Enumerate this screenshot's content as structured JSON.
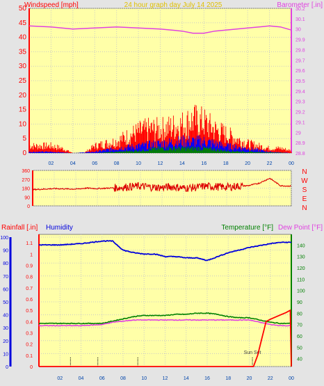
{
  "chart_data": [
    {
      "type": "line",
      "title": "24 hour graph day   July 14 2025",
      "left_axis_label": "Windspeed [mph]",
      "right_axis_label": "Barometer [.in]",
      "left_ylim": [
        0,
        50
      ],
      "left_ticks": [
        "0",
        "5",
        "10",
        "15",
        "20",
        "25",
        "30",
        "35",
        "40",
        "45",
        "50"
      ],
      "right_ylim": [
        28.8,
        30.2
      ],
      "right_ticks": [
        "28.8",
        "28.9",
        "29",
        "29.1",
        "29.2",
        "29.3",
        "29.4",
        "29.5",
        "29.6",
        "29.7",
        "29.8",
        "29.9",
        "30",
        "30.1",
        "30.2"
      ],
      "x_ticks": [
        "02",
        "04",
        "06",
        "08",
        "10",
        "12",
        "14",
        "16",
        "18",
        "20",
        "22",
        "00"
      ],
      "series": [
        {
          "name": "Barometer",
          "color": "#e040e0",
          "x": [
            0,
            2,
            4,
            6,
            8,
            10,
            12,
            14,
            15,
            16,
            17,
            18,
            20,
            22,
            23,
            24
          ],
          "values": [
            30.03,
            30.02,
            30.0,
            30.01,
            30.02,
            30.01,
            30.0,
            29.98,
            29.96,
            29.96,
            29.98,
            29.99,
            30.01,
            30.03,
            30.02,
            29.99
          ]
        },
        {
          "name": "Wind gust",
          "color": "#ff0000",
          "x": [
            0,
            1,
            2,
            3,
            4,
            5,
            6,
            7,
            8,
            9,
            10,
            11,
            12,
            13,
            14,
            15,
            16,
            17,
            18,
            19,
            20,
            21,
            22,
            23,
            24
          ],
          "values": [
            3,
            3,
            3,
            2,
            0,
            0,
            3,
            4,
            5,
            7,
            9,
            10,
            10,
            11,
            12,
            14,
            13,
            10,
            8,
            6,
            4,
            3,
            2,
            2,
            1
          ]
        },
        {
          "name": "Wind speed",
          "color": "#0000ff",
          "x": [
            0,
            2,
            4,
            6,
            8,
            10,
            12,
            14,
            16,
            18,
            20,
            22,
            24
          ],
          "values": [
            0.5,
            0.5,
            0,
            0.5,
            2,
            3,
            4,
            5,
            5,
            3,
            2,
            0.5,
            0
          ]
        },
        {
          "name": "Wind average",
          "color": "#008000",
          "x": [
            0,
            6,
            8,
            10,
            12,
            14,
            16,
            18,
            20,
            24
          ],
          "values": [
            0,
            0,
            0.5,
            1,
            2,
            2,
            2,
            1,
            0.5,
            0
          ]
        }
      ]
    },
    {
      "type": "scatter",
      "ylim": [
        0,
        360
      ],
      "y_ticks": [
        "0",
        "90",
        "180",
        "270",
        "360"
      ],
      "compass_labels": [
        "N",
        "W",
        "S",
        "E",
        "N"
      ],
      "series": [
        {
          "name": "Wind direction",
          "color": "#dd0000",
          "x": [
            0,
            2,
            4,
            5,
            6,
            8,
            9,
            10,
            11,
            12,
            13,
            14,
            15,
            16,
            17,
            18,
            19,
            20,
            21,
            22,
            23,
            24
          ],
          "values": [
            165,
            175,
            170,
            180,
            175,
            185,
            195,
            200,
            190,
            185,
            195,
            180,
            185,
            200,
            195,
            190,
            200,
            205,
            230,
            280,
            205,
            200
          ]
        }
      ]
    },
    {
      "type": "line",
      "left_axis_label": "Rainfall [.in]",
      "humidity_label": "Humidity",
      "right_axis_label": "Temperature [°F]",
      "right_axis_label_2": "Dew Point [°F]",
      "annotation": "Sun Set",
      "humidity_ticks": [
        "0",
        "10",
        "20",
        "30",
        "40",
        "50",
        "60",
        "70",
        "80",
        "90",
        "100"
      ],
      "humidity_ylim": [
        0,
        100
      ],
      "rain_ticks": [
        "0",
        "0.1",
        "0.2",
        "0.3",
        "0.4",
        "0.5",
        "0.6",
        "0.7",
        "0.8",
        "0.9",
        "1",
        "1.1"
      ],
      "rain_ylim": [
        0,
        1.15
      ],
      "temp_ticks": [
        "40",
        "50",
        "60",
        "70",
        "80",
        "90",
        "100",
        "110",
        "120",
        "130",
        "140"
      ],
      "temp_ylim": [
        33,
        147
      ],
      "x_ticks": [
        "02",
        "04",
        "06",
        "08",
        "10",
        "12",
        "14",
        "16",
        "18",
        "20",
        "22",
        "00"
      ],
      "series": [
        {
          "name": "Humidity",
          "color": "#0000dd",
          "x": [
            0,
            2,
            4,
            6,
            7,
            8,
            9,
            10,
            11,
            12,
            13,
            14,
            15,
            16,
            17,
            18,
            20,
            22,
            23,
            24
          ],
          "values": [
            94,
            94,
            95,
            97,
            97,
            90,
            88,
            87,
            87,
            85,
            85,
            84,
            84,
            82,
            85,
            88,
            92,
            95,
            96,
            96
          ]
        },
        {
          "name": "Rainfall",
          "color": "#ff0000",
          "x": [
            0,
            20.4,
            20.8,
            21.2,
            21.6,
            22,
            22.5,
            23,
            23.5,
            23.9,
            24
          ],
          "values": [
            0,
            0,
            0.1,
            0.25,
            0.4,
            0.42,
            0.44,
            0.46,
            0.48,
            0.5,
            0
          ]
        },
        {
          "name": "Temperature",
          "color": "#008000",
          "x": [
            0,
            2,
            4,
            6,
            7,
            8,
            9,
            10,
            11,
            12,
            13,
            14,
            15,
            16,
            17,
            18,
            19,
            20,
            21,
            22,
            23,
            24
          ],
          "values": [
            71,
            71,
            71,
            71,
            73,
            75,
            77,
            78,
            78,
            78,
            79,
            79,
            80,
            80,
            79,
            77,
            76,
            76,
            74,
            72,
            71,
            71
          ]
        },
        {
          "name": "Dew Point",
          "color": "#e040e0",
          "x": [
            0,
            2,
            4,
            6,
            7,
            8,
            9,
            10,
            11,
            12,
            13,
            14,
            15,
            16,
            17,
            18,
            19,
            20,
            21,
            22,
            23,
            24
          ],
          "values": [
            69,
            69,
            69,
            70,
            72,
            73,
            74,
            74,
            74,
            74,
            74,
            74,
            74,
            74,
            74,
            74,
            74,
            74,
            72,
            70,
            69,
            69
          ]
        }
      ]
    }
  ]
}
